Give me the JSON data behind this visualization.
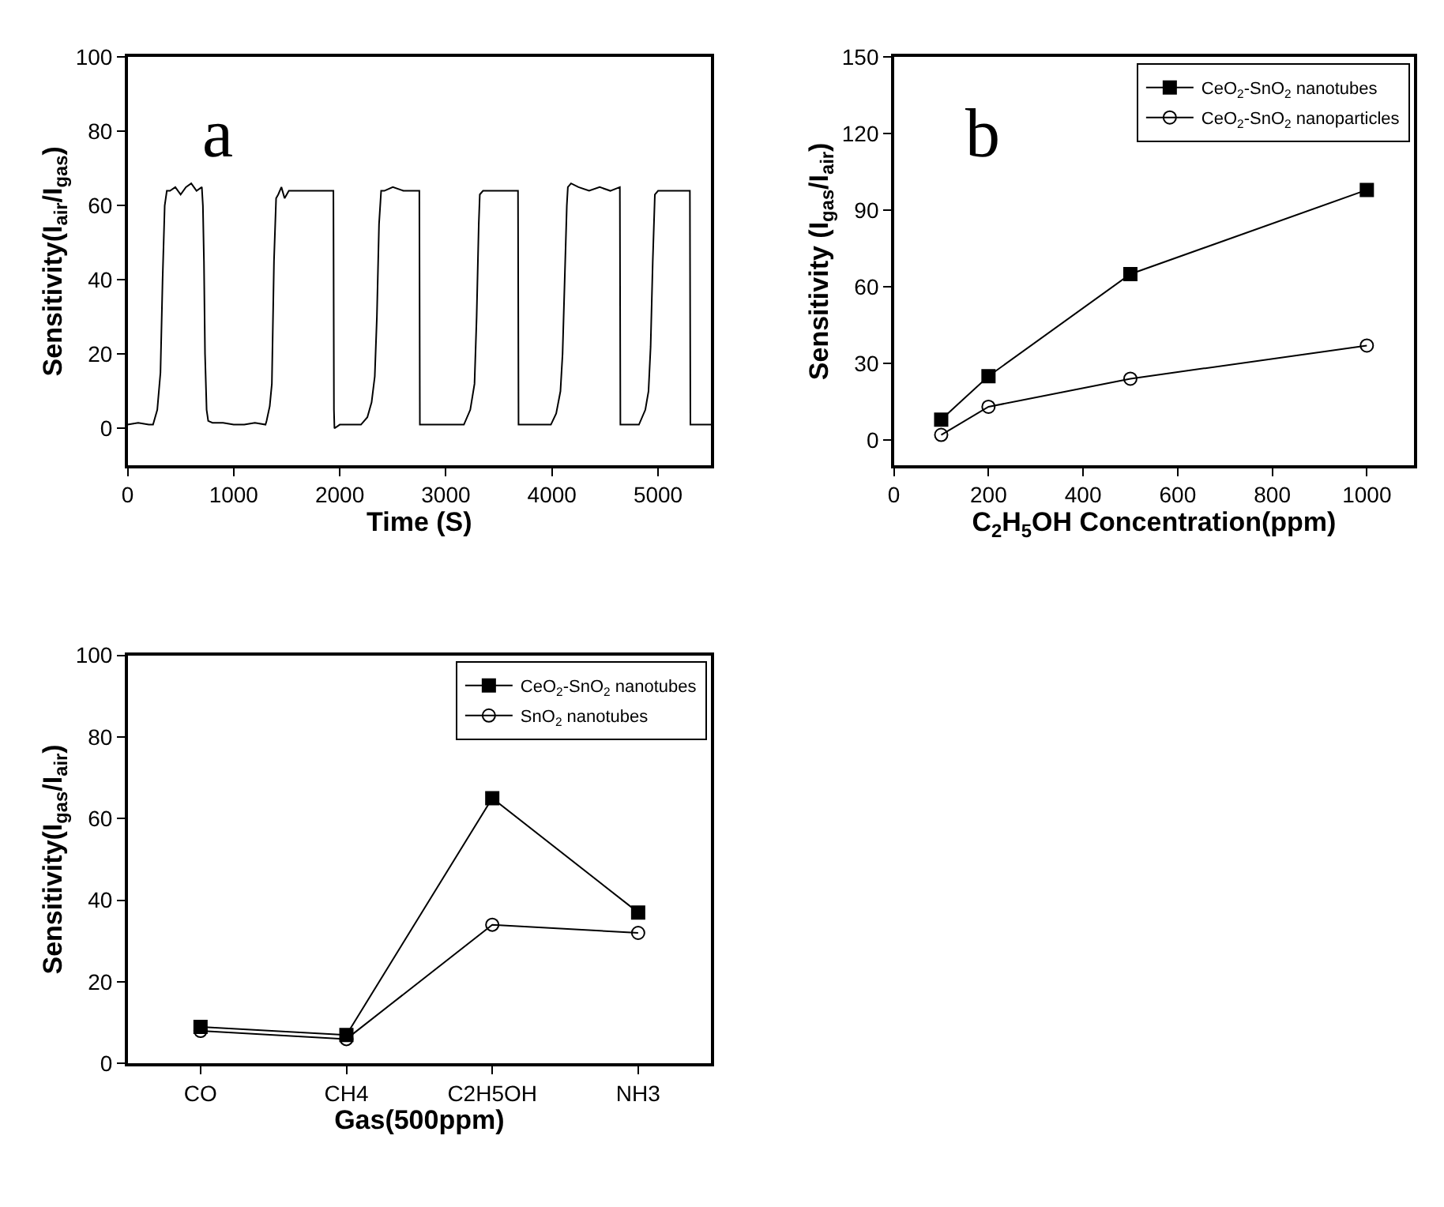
{
  "chart_data": [
    {
      "type": "line",
      "xlabel": "Time (S)",
      "ylabel": "Sensitivity(I$_{air}$/I$_{gas}$)",
      "annotations": [
        "a"
      ],
      "xlim": [
        0,
        5500
      ],
      "xticks": [
        0,
        1000,
        2000,
        3000,
        4000,
        5000
      ],
      "ylim": [
        -10,
        100
      ],
      "yticks": [
        0,
        20,
        40,
        60,
        80,
        100
      ],
      "legend": false,
      "series": [
        {
          "color": "#000000",
          "marker": "none",
          "x": [
            0,
            100,
            200,
            240,
            280,
            310,
            330,
            350,
            370,
            400,
            450,
            500,
            550,
            600,
            650,
            700,
            710,
            720,
            730,
            745,
            760,
            800,
            900,
            1000,
            1100,
            1200,
            1300,
            1310,
            1340,
            1360,
            1380,
            1400,
            1420,
            1450,
            1480,
            1520,
            1600,
            1700,
            1800,
            1900,
            1940,
            1945,
            1950,
            2000,
            2100,
            2200,
            2260,
            2300,
            2330,
            2350,
            2370,
            2390,
            2420,
            2500,
            2600,
            2700,
            2750,
            2755,
            2800,
            2900,
            3000,
            3100,
            3170,
            3230,
            3270,
            3290,
            3310,
            3320,
            3350,
            3400,
            3500,
            3600,
            3680,
            3685,
            3700,
            3800,
            3900,
            3990,
            4040,
            4080,
            4100,
            4120,
            4140,
            4150,
            4180,
            4250,
            4350,
            4450,
            4550,
            4640,
            4645,
            4700,
            4800,
            4820,
            4880,
            4910,
            4930,
            4950,
            4970,
            5000,
            5100,
            5200,
            5300,
            5305,
            5400,
            5500
          ],
          "values": [
            1,
            1.5,
            1,
            1,
            5,
            15,
            40,
            60,
            64,
            64,
            65,
            63,
            65,
            66,
            64,
            65,
            60,
            45,
            20,
            5,
            2,
            1.5,
            1.5,
            1,
            1,
            1.5,
            1,
            2,
            6,
            12,
            45,
            62,
            63,
            65,
            62,
            64,
            64,
            64,
            64,
            64,
            64,
            5,
            0,
            1,
            1,
            1,
            3,
            7,
            14,
            30,
            55,
            64,
            64,
            65,
            64,
            64,
            64,
            1,
            1,
            1,
            1,
            1,
            1,
            5,
            12,
            30,
            55,
            63,
            64,
            64,
            64,
            64,
            64,
            1,
            1,
            1,
            1,
            1,
            4,
            10,
            20,
            40,
            60,
            65,
            66,
            65,
            64,
            65,
            64,
            65,
            1,
            1,
            1,
            1,
            5,
            10,
            22,
            45,
            63,
            64,
            64,
            64,
            64,
            1,
            1,
            1
          ]
        }
      ]
    },
    {
      "type": "line",
      "xlabel": "C$_{2}$H$_{5}$OH Concentration(ppm)",
      "ylabel": "Sensitivity (I$_{gas}$/I$_{air}$)",
      "annotations": [
        "b"
      ],
      "x": [
        100,
        200,
        500,
        1000
      ],
      "xlim": [
        0,
        1100
      ],
      "xticks": [
        0,
        200,
        400,
        600,
        800,
        1000
      ],
      "ylim": [
        -10,
        150
      ],
      "yticks": [
        0,
        30,
        60,
        90,
        120,
        150
      ],
      "legend": "top right",
      "series": [
        {
          "name": "CeO$_{2}$-SnO$_{2}$ nanotubes",
          "color": "#000000",
          "marker": "square",
          "values": [
            8,
            25,
            65,
            98
          ]
        },
        {
          "name": "CeO$_{2}$-SnO$_{2}$ nanoparticles",
          "color": "#000000",
          "marker": "circle",
          "values": [
            2,
            13,
            24,
            37
          ]
        }
      ]
    },
    {
      "type": "line",
      "xlabel": "Gas(500ppm)",
      "ylabel": "Sensitivity(I$_{gas}$/I$_{air}$)",
      "categories": [
        "CO",
        "CH4",
        "C2H5OH",
        "NH3"
      ],
      "ylim": [
        0,
        100
      ],
      "yticks": [
        0,
        20,
        40,
        60,
        80,
        100
      ],
      "legend": "top right",
      "series": [
        {
          "name": "CeO$_{2}$-SnO$_{2}$ nanotubes",
          "color": "#000000",
          "marker": "square",
          "values": [
            9,
            7,
            65,
            37
          ]
        },
        {
          "name": "SnO$_{2}$ nanotubes",
          "color": "#000000",
          "marker": "circle",
          "values": [
            8,
            6,
            34,
            32
          ]
        }
      ]
    }
  ]
}
